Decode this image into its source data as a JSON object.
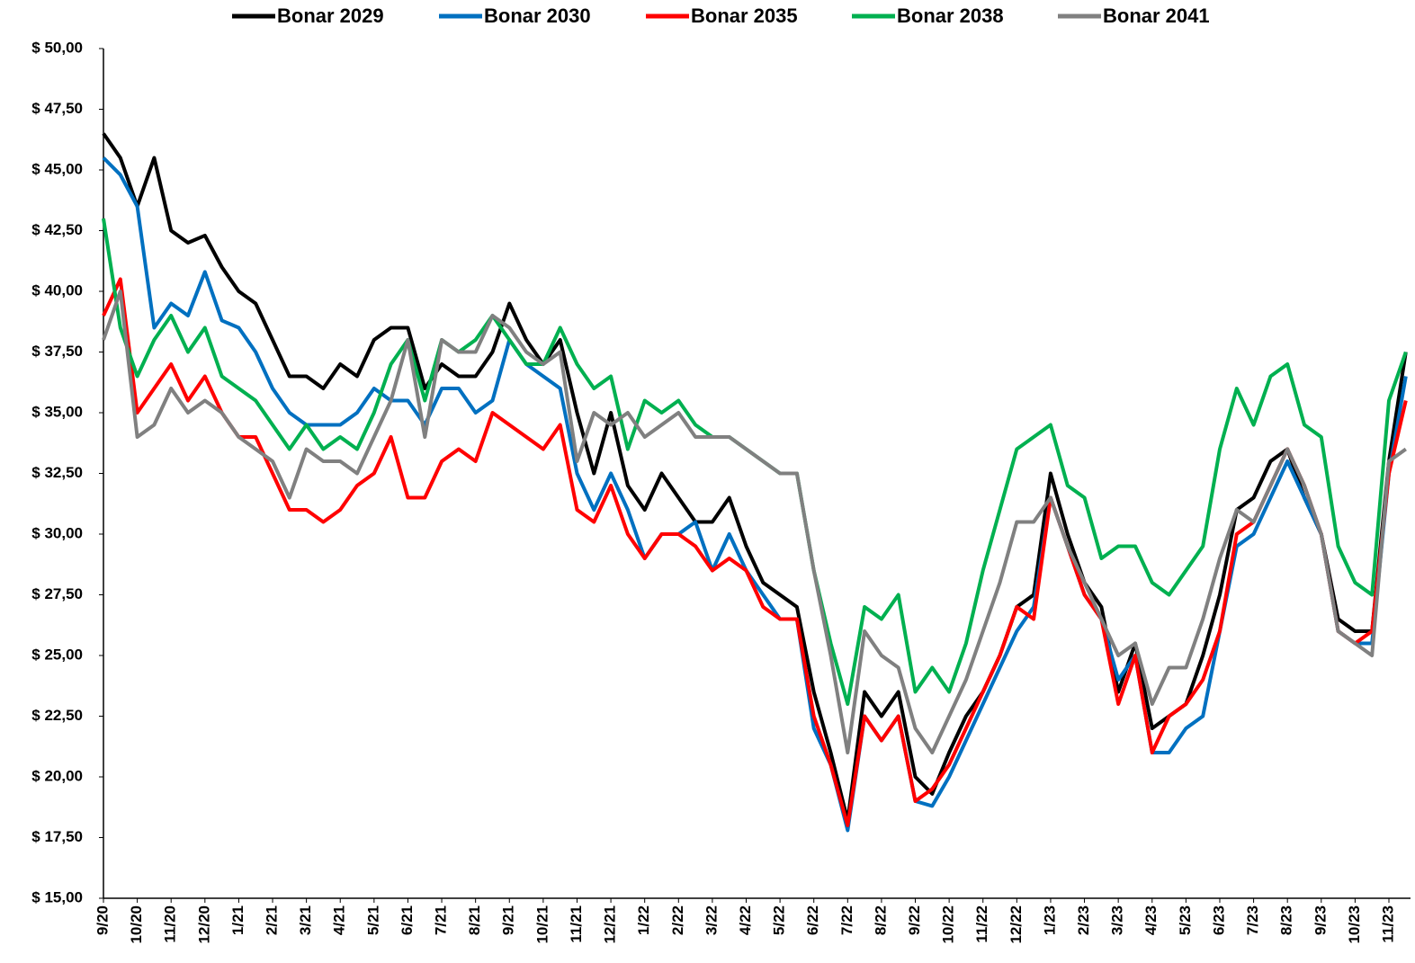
{
  "chart_data": {
    "type": "line",
    "categories": [
      "9/20",
      null,
      "10/20",
      null,
      "11/20",
      null,
      "12/20",
      null,
      "1/21",
      null,
      "2/21",
      null,
      "3/21",
      null,
      "4/21",
      null,
      "5/21",
      null,
      "6/21",
      null,
      "7/21",
      null,
      "8/21",
      null,
      "9/21",
      null,
      "10/21",
      null,
      "11/21",
      null,
      "12/21",
      null,
      "1/22",
      null,
      "2/22",
      null,
      "3/22",
      null,
      "4/22",
      null,
      "5/22",
      null,
      "6/22",
      null,
      "7/22",
      null,
      "8/22",
      null,
      "9/22",
      null,
      "10/22",
      null,
      "11/22",
      null,
      "12/22",
      null,
      "1/23",
      null,
      "2/23",
      null,
      "3/23",
      null,
      "4/23",
      null,
      "5/23",
      null,
      "6/23",
      null,
      "7/23",
      null,
      "8/23",
      null,
      "9/23",
      null,
      "10/23",
      null,
      "11/23",
      null
    ],
    "series": [
      {
        "name": "Bonar 2029",
        "color": "#000000",
        "values": [
          46.5,
          45.5,
          43.5,
          45.5,
          42.5,
          42,
          42.3,
          41,
          40,
          39.5,
          38,
          36.5,
          36.5,
          36,
          37,
          36.5,
          38,
          38.5,
          38.5,
          36,
          37,
          36.5,
          36.5,
          37.5,
          39.5,
          38,
          37,
          38,
          35,
          32.5,
          35,
          32,
          31,
          32.5,
          31.5,
          30.5,
          30.5,
          31.5,
          29.5,
          28,
          27.5,
          27,
          23.5,
          21,
          18.2,
          23.5,
          22.5,
          23.5,
          20,
          19.3,
          21,
          22.5,
          23.5,
          25,
          27,
          27.5,
          32.5,
          30,
          28,
          27,
          23.5,
          25.5,
          22,
          22.5,
          23,
          25,
          27.5,
          31,
          31.5,
          33,
          33.5,
          31.5,
          30,
          26.5,
          26,
          26,
          33,
          37.5
        ]
      },
      {
        "name": "Bonar 2030",
        "color": "#0070c0",
        "values": [
          45.5,
          44.8,
          43.5,
          38.5,
          39.5,
          39,
          40.8,
          38.8,
          38.5,
          37.5,
          36,
          35,
          34.5,
          34.5,
          34.5,
          35,
          36,
          35.5,
          35.5,
          34.5,
          36,
          36,
          35,
          35.5,
          38,
          37,
          36.5,
          36,
          32.5,
          31,
          32.5,
          31,
          29,
          30,
          30,
          30.5,
          28.5,
          30,
          28.5,
          27.5,
          26.5,
          26.5,
          22,
          20.5,
          17.8,
          22.5,
          21.5,
          22.5,
          19,
          18.8,
          20,
          21.5,
          23,
          24.5,
          26,
          27,
          31.5,
          29.5,
          27.5,
          26.5,
          24,
          25,
          21,
          21,
          22,
          22.5,
          26,
          29.5,
          30,
          31.5,
          33,
          31.5,
          30,
          26,
          25.5,
          25.5,
          32.5,
          36.5
        ]
      },
      {
        "name": "Bonar 2035",
        "color": "#ff0000",
        "values": [
          39,
          40.5,
          35,
          36,
          37,
          35.5,
          36.5,
          35,
          34,
          34,
          32.5,
          31,
          31,
          30.5,
          31,
          32,
          32.5,
          34,
          31.5,
          31.5,
          33,
          33.5,
          33,
          35,
          34.5,
          34,
          33.5,
          34.5,
          31,
          30.5,
          32,
          30,
          29,
          30,
          30,
          29.5,
          28.5,
          29,
          28.5,
          27,
          26.5,
          26.5,
          22.5,
          20.5,
          18,
          22.5,
          21.5,
          22.5,
          19,
          19.5,
          20.5,
          22,
          23.5,
          25,
          27,
          26.5,
          31.5,
          29.5,
          27.5,
          26.5,
          23,
          25,
          21,
          22.5,
          23,
          24,
          26,
          30,
          30.5,
          32,
          33.5,
          32,
          30,
          26,
          25.5,
          26,
          32.5,
          35.5
        ]
      },
      {
        "name": "Bonar 2038",
        "color": "#00b050",
        "values": [
          43,
          38.5,
          36.5,
          38,
          39,
          37.5,
          38.5,
          36.5,
          36,
          35.5,
          34.5,
          33.5,
          34.5,
          33.5,
          34,
          33.5,
          35,
          37,
          38,
          35.5,
          38,
          37.5,
          38,
          39,
          38,
          37,
          37,
          38.5,
          37,
          36,
          36.5,
          33.5,
          35.5,
          35,
          35.5,
          34.5,
          34,
          34,
          33.5,
          33,
          32.5,
          32.5,
          28.5,
          25.5,
          23,
          27,
          26.5,
          27.5,
          23.5,
          24.5,
          23.5,
          25.5,
          28.5,
          31,
          33.5,
          34,
          34.5,
          32,
          31.5,
          29,
          29.5,
          29.5,
          28,
          27.5,
          28.5,
          29.5,
          33.5,
          36,
          34.5,
          36.5,
          37,
          34.5,
          34,
          29.5,
          28,
          27.5,
          35.5,
          37.5
        ]
      },
      {
        "name": "Bonar 2041",
        "color": "#808080",
        "values": [
          38,
          40,
          34,
          34.5,
          36,
          35,
          35.5,
          35,
          34,
          33.5,
          33,
          31.5,
          33.5,
          33,
          33,
          32.5,
          34,
          35.5,
          38,
          34,
          38,
          37.5,
          37.5,
          39,
          38.5,
          37.5,
          37,
          37.5,
          33,
          35,
          34.5,
          35,
          34,
          34.5,
          35,
          34,
          34,
          34,
          33.5,
          33,
          32.5,
          32.5,
          28.5,
          25,
          21,
          26,
          25,
          24.5,
          22,
          21,
          22.5,
          24,
          26,
          28,
          30.5,
          30.5,
          31.5,
          29.5,
          28,
          26.5,
          25,
          25.5,
          23,
          24.5,
          24.5,
          26.5,
          29,
          31,
          30.5,
          32,
          33.5,
          32,
          30,
          26,
          25.5,
          25,
          33,
          33.5
        ]
      }
    ],
    "ylim": [
      15,
      50
    ],
    "yticks": [
      {
        "value": 15,
        "label": "$ 15,00"
      },
      {
        "value": 17.5,
        "label": "$ 17,50"
      },
      {
        "value": 20,
        "label": "$ 20,00"
      },
      {
        "value": 22.5,
        "label": "$ 22,50"
      },
      {
        "value": 25,
        "label": "$ 25,00"
      },
      {
        "value": 27.5,
        "label": "$ 27,50"
      },
      {
        "value": 30,
        "label": "$ 30,00"
      },
      {
        "value": 32.5,
        "label": "$ 32,50"
      },
      {
        "value": 35,
        "label": "$ 35,00"
      },
      {
        "value": 37.5,
        "label": "$ 37,50"
      },
      {
        "value": 40,
        "label": "$ 40,00"
      },
      {
        "value": 42.5,
        "label": "$ 42,50"
      },
      {
        "value": 45,
        "label": "$ 45,00"
      },
      {
        "value": 47.5,
        "label": "$ 47,50"
      },
      {
        "value": 50,
        "label": "$ 50,00"
      }
    ],
    "grid": false,
    "legend": "top"
  }
}
